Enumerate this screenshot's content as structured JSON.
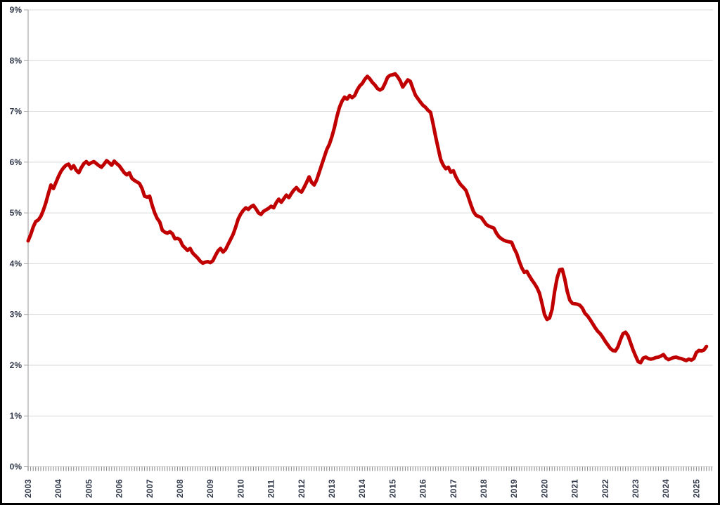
{
  "chart_data": {
    "type": "line",
    "title": "",
    "xlabel": "",
    "ylabel": "",
    "legend": "none",
    "grid": "horizontal",
    "ylim": [
      0,
      9
    ],
    "y_tick_labels": [
      "0%",
      "1%",
      "2%",
      "3%",
      "4%",
      "5%",
      "6%",
      "7%",
      "8%",
      "9%"
    ],
    "x_tick_labels": [
      "2003",
      "2004",
      "2005",
      "2006",
      "2007",
      "2008",
      "2009",
      "2010",
      "2011",
      "2012",
      "2013",
      "2014",
      "2015",
      "2016",
      "2017",
      "2018",
      "2019",
      "2020",
      "2021",
      "2022",
      "2023",
      "2024",
      "2025"
    ],
    "series": [
      {
        "name": "unemployment-percentage",
        "color": "#C00000",
        "frequency": "monthly",
        "start_year": 2003,
        "start_month": 1,
        "values": [
          4.45,
          4.57,
          4.72,
          4.83,
          4.86,
          4.93,
          5.05,
          5.2,
          5.38,
          5.55,
          5.48,
          5.6,
          5.72,
          5.82,
          5.89,
          5.94,
          5.96,
          5.87,
          5.93,
          5.84,
          5.79,
          5.89,
          5.97,
          6.01,
          5.96,
          5.99,
          6.01,
          5.97,
          5.93,
          5.9,
          5.96,
          6.03,
          5.99,
          5.94,
          6.02,
          5.97,
          5.93,
          5.86,
          5.79,
          5.75,
          5.79,
          5.68,
          5.64,
          5.61,
          5.58,
          5.48,
          5.33,
          5.31,
          5.33,
          5.15,
          5.0,
          4.89,
          4.82,
          4.66,
          4.62,
          4.6,
          4.63,
          4.59,
          4.49,
          4.5,
          4.47,
          4.36,
          4.31,
          4.26,
          4.3,
          4.21,
          4.16,
          4.11,
          4.05,
          4.01,
          4.03,
          4.04,
          4.02,
          4.06,
          4.16,
          4.25,
          4.3,
          4.23,
          4.28,
          4.38,
          4.48,
          4.58,
          4.72,
          4.88,
          4.98,
          5.05,
          5.1,
          5.07,
          5.12,
          5.15,
          5.08,
          5.0,
          4.97,
          5.03,
          5.06,
          5.09,
          5.13,
          5.1,
          5.2,
          5.27,
          5.21,
          5.28,
          5.35,
          5.3,
          5.38,
          5.45,
          5.5,
          5.44,
          5.41,
          5.5,
          5.6,
          5.71,
          5.6,
          5.55,
          5.65,
          5.8,
          5.95,
          6.1,
          6.25,
          6.35,
          6.5,
          6.68,
          6.9,
          7.08,
          7.2,
          7.28,
          7.24,
          7.31,
          7.27,
          7.31,
          7.42,
          7.5,
          7.55,
          7.63,
          7.69,
          7.64,
          7.57,
          7.52,
          7.45,
          7.42,
          7.45,
          7.55,
          7.67,
          7.71,
          7.72,
          7.74,
          7.68,
          7.6,
          7.48,
          7.55,
          7.62,
          7.59,
          7.45,
          7.32,
          7.25,
          7.18,
          7.12,
          7.08,
          7.02,
          6.98,
          6.75,
          6.5,
          6.27,
          6.05,
          5.94,
          5.87,
          5.9,
          5.8,
          5.83,
          5.71,
          5.62,
          5.55,
          5.5,
          5.44,
          5.3,
          5.15,
          5.02,
          4.95,
          4.93,
          4.91,
          4.84,
          4.77,
          4.74,
          4.72,
          4.7,
          4.6,
          4.53,
          4.49,
          4.46,
          4.44,
          4.43,
          4.42,
          4.3,
          4.2,
          4.05,
          3.92,
          3.83,
          3.85,
          3.76,
          3.68,
          3.61,
          3.53,
          3.42,
          3.22,
          3.0,
          2.9,
          2.93,
          3.1,
          3.45,
          3.72,
          3.88,
          3.89,
          3.7,
          3.45,
          3.28,
          3.22,
          3.21,
          3.2,
          3.18,
          3.12,
          3.02,
          2.97,
          2.9,
          2.82,
          2.74,
          2.67,
          2.62,
          2.55,
          2.47,
          2.4,
          2.33,
          2.29,
          2.28,
          2.36,
          2.5,
          2.62,
          2.65,
          2.58,
          2.44,
          2.3,
          2.18,
          2.07,
          2.05,
          2.14,
          2.16,
          2.13,
          2.12,
          2.13,
          2.15,
          2.16,
          2.18,
          2.21,
          2.14,
          2.11,
          2.13,
          2.15,
          2.16,
          2.14,
          2.13,
          2.11,
          2.09,
          2.12,
          2.1,
          2.13,
          2.25,
          2.29,
          2.28,
          2.3,
          2.37
        ]
      }
    ],
    "colors": {
      "line": "#C00000",
      "gridline": "#D9D9D9",
      "axis": "#A6A6A6",
      "month_tick": "#808080",
      "label_text": "#31394A",
      "frame": "#000000",
      "background": "#FFFFFF"
    }
  }
}
